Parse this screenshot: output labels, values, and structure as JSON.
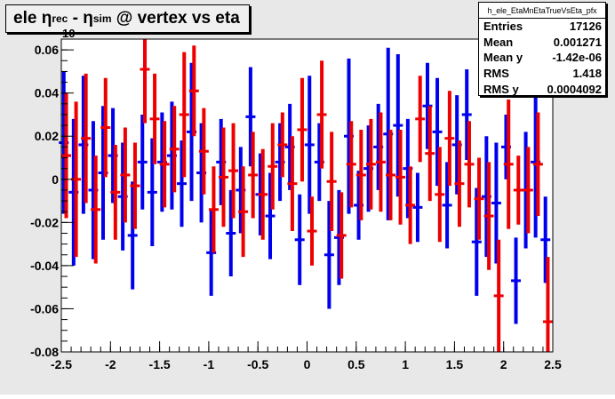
{
  "title": {
    "prefix": "ele ",
    "eta1": "η",
    "sub1": "rec",
    "minus": " - ",
    "eta2": "η",
    "sub2": "sim",
    "suffix": " @ vertex vs eta"
  },
  "exponent_label": "10",
  "stats": {
    "name": "h_ele_EtaMnEtaTrueVsEta_pfx",
    "rows": [
      {
        "label": "Entries",
        "value": "17126"
      },
      {
        "label": "Mean",
        "value": "0.001271"
      },
      {
        "label": "Mean y",
        "value": "-1.42e-06"
      },
      {
        "label": "RMS",
        "value": "1.418"
      },
      {
        "label": "RMS y",
        "value": "0.0004092"
      }
    ]
  },
  "chart_data": {
    "type": "scatter",
    "title": "ele η_rec - η_sim @ vertex vs eta",
    "xlim": [
      -2.5,
      2.5
    ],
    "ylim": [
      -0.08,
      0.065
    ],
    "xticks": [
      "-2.5",
      "-2",
      "-1.5",
      "-1",
      "-0.5",
      "0",
      "0.5",
      "1",
      "1.5",
      "2",
      "2.5"
    ],
    "yticks": [
      "-0.08",
      "-0.06",
      "-0.04",
      "-0.02",
      "0",
      "0.02",
      "0.04",
      "0.06"
    ],
    "grid": false,
    "colors": {
      "blue": "#0000ee",
      "red": "#ee0000",
      "axis": "#000000",
      "frame_bg": "#ffffff",
      "canvas_bg": "#e8e8e8"
    },
    "series": [
      {
        "color": "blue",
        "points": [
          {
            "x": -2.475,
            "y": 0.017,
            "err": 0.033
          },
          {
            "x": -2.375,
            "y": -0.006,
            "err": 0.034
          },
          {
            "x": -2.275,
            "y": 0.016,
            "err": 0.032
          },
          {
            "x": -2.175,
            "y": -0.005,
            "err": 0.032
          },
          {
            "x": -2.075,
            "y": 0.003,
            "err": 0.031
          },
          {
            "x": -1.975,
            "y": 0.011,
            "err": 0.022
          },
          {
            "x": -1.875,
            "y": -0.008,
            "err": 0.025
          },
          {
            "x": -1.775,
            "y": -0.026,
            "err": 0.025
          },
          {
            "x": -1.675,
            "y": 0.008,
            "err": 0.022
          },
          {
            "x": -1.575,
            "y": -0.006,
            "err": 0.025
          },
          {
            "x": -1.475,
            "y": 0.008,
            "err": 0.023
          },
          {
            "x": -1.375,
            "y": 0.011,
            "err": 0.025
          },
          {
            "x": -1.275,
            "y": -0.002,
            "err": 0.02
          },
          {
            "x": -1.175,
            "y": 0.022,
            "err": 0.032
          },
          {
            "x": -1.075,
            "y": 0.003,
            "err": 0.023
          },
          {
            "x": -0.975,
            "y": -0.034,
            "err": 0.02
          },
          {
            "x": -0.875,
            "y": 0.008,
            "err": 0.02
          },
          {
            "x": -0.775,
            "y": -0.025,
            "err": 0.02
          },
          {
            "x": -0.675,
            "y": -0.005,
            "err": 0.02
          },
          {
            "x": -0.575,
            "y": 0.029,
            "err": 0.023
          },
          {
            "x": -0.475,
            "y": -0.007,
            "err": 0.019
          },
          {
            "x": -0.375,
            "y": -0.017,
            "err": 0.02
          },
          {
            "x": -0.275,
            "y": 0.008,
            "err": 0.018
          },
          {
            "x": -0.175,
            "y": 0.015,
            "err": 0.02
          },
          {
            "x": -0.075,
            "y": -0.028,
            "err": 0.021
          },
          {
            "x": 0.025,
            "y": 0.016,
            "err": 0.032
          },
          {
            "x": 0.125,
            "y": 0.008,
            "err": 0.018
          },
          {
            "x": 0.225,
            "y": -0.035,
            "err": 0.025
          },
          {
            "x": 0.325,
            "y": -0.027,
            "err": 0.022
          },
          {
            "x": 0.425,
            "y": 0.02,
            "err": 0.036
          },
          {
            "x": 0.525,
            "y": -0.012,
            "err": 0.016
          },
          {
            "x": 0.625,
            "y": 0.005,
            "err": 0.02
          },
          {
            "x": 0.725,
            "y": 0.015,
            "err": 0.02
          },
          {
            "x": 0.825,
            "y": 0.021,
            "err": 0.04
          },
          {
            "x": 0.925,
            "y": 0.025,
            "err": 0.033
          },
          {
            "x": 1.025,
            "y": 0.005,
            "err": 0.023
          },
          {
            "x": 1.125,
            "y": -0.013,
            "err": 0.016
          },
          {
            "x": 1.225,
            "y": 0.034,
            "err": 0.02
          },
          {
            "x": 1.325,
            "y": 0.022,
            "err": 0.025
          },
          {
            "x": 1.425,
            "y": -0.012,
            "err": 0.02
          },
          {
            "x": 1.525,
            "y": 0.016,
            "err": 0.023
          },
          {
            "x": 1.625,
            "y": 0.03,
            "err": 0.021
          },
          {
            "x": 1.725,
            "y": -0.029,
            "err": 0.025
          },
          {
            "x": 1.825,
            "y": -0.008,
            "err": 0.028
          },
          {
            "x": 1.925,
            "y": -0.011,
            "err": 0.028
          },
          {
            "x": 2.025,
            "y": 0.015,
            "err": 0.015
          },
          {
            "x": 2.125,
            "y": -0.047,
            "err": 0.02
          },
          {
            "x": 2.225,
            "y": -0.005,
            "err": 0.027
          },
          {
            "x": 2.325,
            "y": 0.008,
            "err": 0.035
          },
          {
            "x": 2.425,
            "y": -0.028,
            "err": 0.02
          }
        ]
      },
      {
        "color": "red",
        "points": [
          {
            "x": -2.45,
            "y": 0.011,
            "err": 0.029
          },
          {
            "x": -2.35,
            "y": 0.0,
            "err": 0.036
          },
          {
            "x": -2.25,
            "y": 0.019,
            "err": 0.03
          },
          {
            "x": -2.15,
            "y": -0.014,
            "err": 0.025
          },
          {
            "x": -2.05,
            "y": 0.024,
            "err": 0.023
          },
          {
            "x": -1.95,
            "y": -0.006,
            "err": 0.022
          },
          {
            "x": -1.85,
            "y": 0.002,
            "err": 0.022
          },
          {
            "x": -1.75,
            "y": -0.003,
            "err": 0.02
          },
          {
            "x": -1.65,
            "y": 0.051,
            "err": 0.025
          },
          {
            "x": -1.55,
            "y": 0.028,
            "err": 0.021
          },
          {
            "x": -1.45,
            "y": 0.007,
            "err": 0.02
          },
          {
            "x": -1.35,
            "y": 0.014,
            "err": 0.02
          },
          {
            "x": -1.25,
            "y": 0.03,
            "err": 0.029
          },
          {
            "x": -1.15,
            "y": 0.041,
            "err": 0.021
          },
          {
            "x": -1.05,
            "y": 0.013,
            "err": 0.02
          },
          {
            "x": -0.95,
            "y": -0.014,
            "err": 0.02
          },
          {
            "x": -0.85,
            "y": 0.001,
            "err": 0.023
          },
          {
            "x": -0.75,
            "y": 0.004,
            "err": 0.022
          },
          {
            "x": -0.65,
            "y": -0.015,
            "err": 0.021
          },
          {
            "x": -0.55,
            "y": 0.002,
            "err": 0.02
          },
          {
            "x": -0.45,
            "y": -0.007,
            "err": 0.021
          },
          {
            "x": -0.35,
            "y": 0.006,
            "err": 0.02
          },
          {
            "x": -0.25,
            "y": 0.016,
            "err": 0.015
          },
          {
            "x": -0.15,
            "y": -0.002,
            "err": 0.022
          },
          {
            "x": -0.05,
            "y": 0.023,
            "err": 0.024
          },
          {
            "x": 0.05,
            "y": -0.024,
            "err": 0.016
          },
          {
            "x": 0.15,
            "y": 0.03,
            "err": 0.025
          },
          {
            "x": 0.25,
            "y": -0.001,
            "err": 0.023
          },
          {
            "x": 0.35,
            "y": -0.026,
            "err": 0.02
          },
          {
            "x": 0.45,
            "y": 0.007,
            "err": 0.02
          },
          {
            "x": 0.55,
            "y": 0.002,
            "err": 0.021
          },
          {
            "x": 0.65,
            "y": 0.007,
            "err": 0.021
          },
          {
            "x": 0.75,
            "y": 0.008,
            "err": 0.023
          },
          {
            "x": 0.85,
            "y": 0.002,
            "err": 0.021
          },
          {
            "x": 0.95,
            "y": 0.001,
            "err": 0.022
          },
          {
            "x": 1.05,
            "y": -0.012,
            "err": 0.018
          },
          {
            "x": 1.15,
            "y": 0.028,
            "err": 0.02
          },
          {
            "x": 1.25,
            "y": 0.012,
            "err": 0.022
          },
          {
            "x": 1.35,
            "y": -0.007,
            "err": 0.022
          },
          {
            "x": 1.45,
            "y": 0.019,
            "err": 0.022
          },
          {
            "x": 1.55,
            "y": -0.002,
            "err": 0.02
          },
          {
            "x": 1.65,
            "y": 0.007,
            "err": 0.02
          },
          {
            "x": 1.75,
            "y": -0.009,
            "err": 0.019
          },
          {
            "x": 1.85,
            "y": -0.017,
            "err": 0.025
          },
          {
            "x": 1.95,
            "y": -0.054,
            "err": 0.026
          },
          {
            "x": 2.05,
            "y": 0.007,
            "err": 0.03
          },
          {
            "x": 2.15,
            "y": -0.005,
            "err": 0.016
          },
          {
            "x": 2.25,
            "y": -0.005,
            "err": 0.02
          },
          {
            "x": 2.35,
            "y": 0.007,
            "err": 0.024
          },
          {
            "x": 2.45,
            "y": -0.066,
            "err": 0.03
          }
        ]
      }
    ]
  }
}
